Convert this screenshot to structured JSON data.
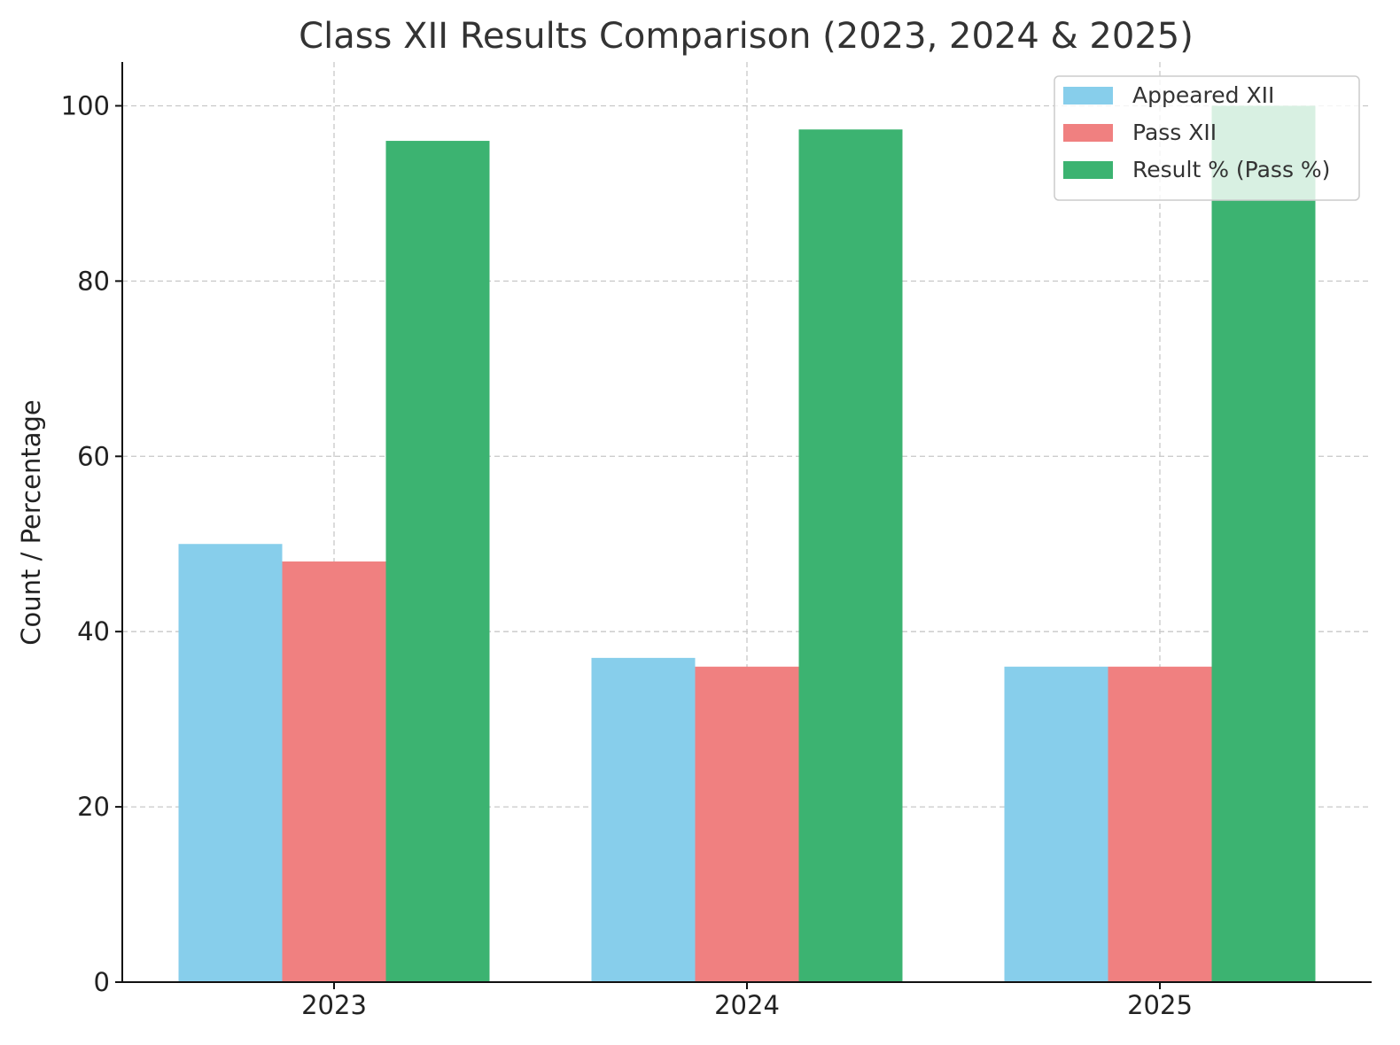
{
  "chart_data": {
    "type": "bar",
    "title": "Class XII Results Comparison (2023, 2024 & 2025)",
    "xlabel": "",
    "ylabel": "Count / Percentage",
    "categories": [
      "2023",
      "2024",
      "2025"
    ],
    "series": [
      {
        "name": "Appeared XII",
        "values": [
          50,
          37,
          36
        ],
        "color": "#87CEEB"
      },
      {
        "name": "Pass XII",
        "values": [
          48,
          36,
          36
        ],
        "color": "#F08080"
      },
      {
        "name": "Result % (Pass %)",
        "values": [
          96,
          97.3,
          100
        ],
        "color": "#3CB371"
      }
    ],
    "ylim": [
      0,
      105
    ],
    "yticks": [
      "0",
      "20",
      "40",
      "60",
      "80",
      "100"
    ],
    "grid": true,
    "legend_position": "top-right"
  }
}
